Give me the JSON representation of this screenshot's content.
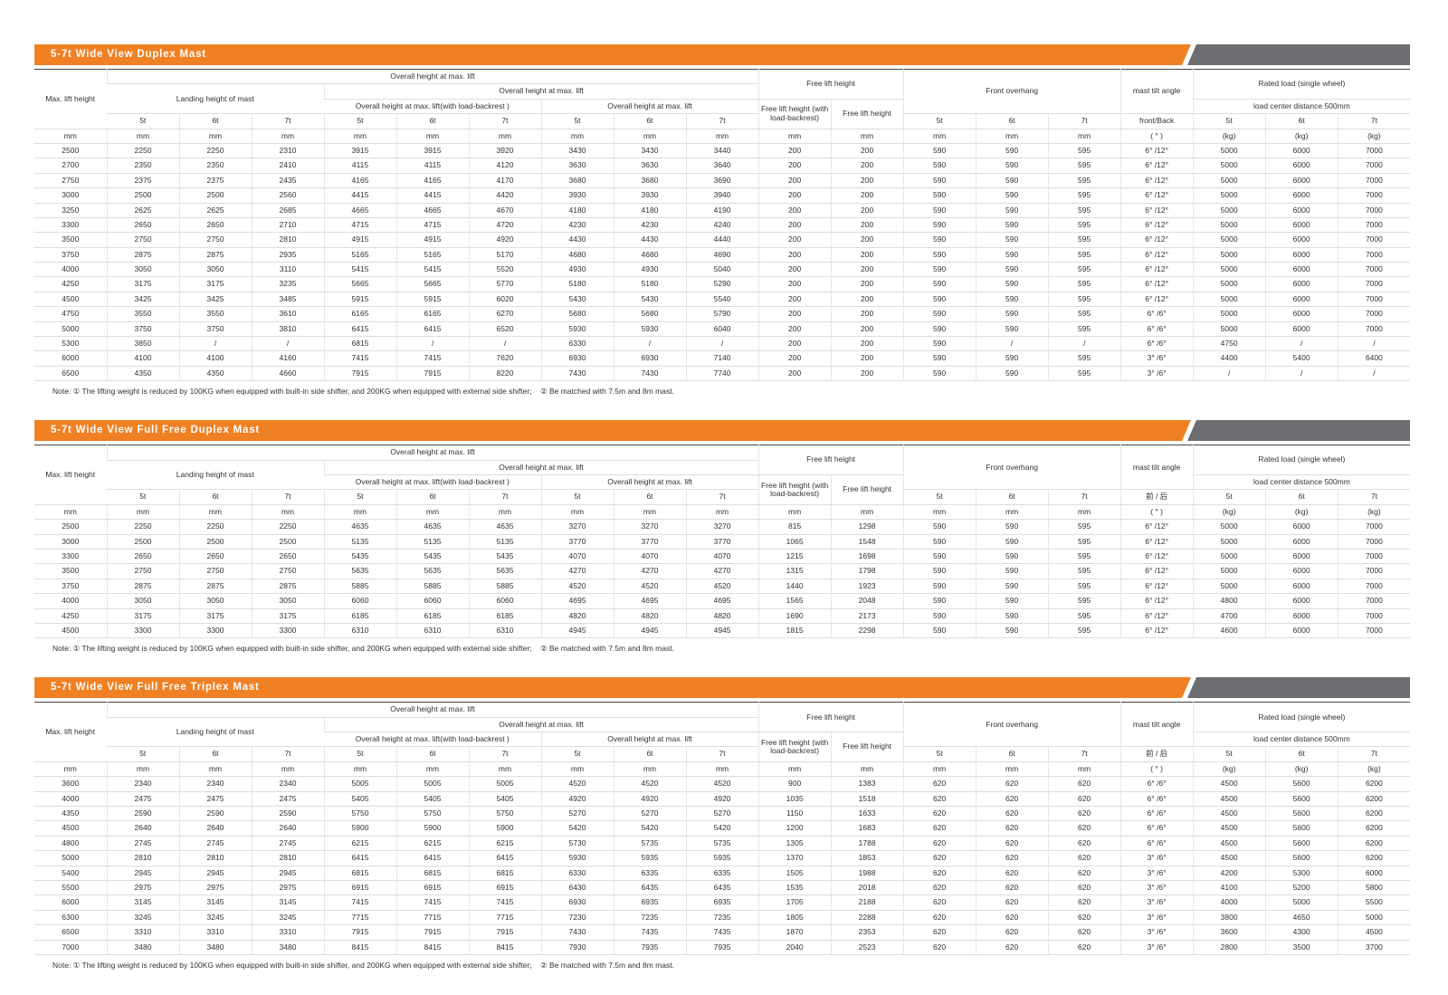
{
  "sections": [
    {
      "title": "5-7t Wide View Duplex Mast",
      "header": [
        [
          "Max. lift height",
          "Overall height at max. lift",
          "Free lift height",
          "Front overhang",
          "mast tilt angle",
          "Rated load (single wheel)"
        ],
        [
          "Landing height of mast",
          "Overall height at max. lift"
        ],
        [
          "Overall height at max. lift(with load-backrest )",
          "Overall height at max. lift",
          "Free lift height (with load-backrest)",
          "Free lift height",
          "load center distance 500mm"
        ],
        [
          "5t",
          "6t",
          "7t",
          "5t",
          "6t",
          "7t",
          "5t",
          "6t",
          "7t",
          "5t",
          "6t",
          "7t",
          "front/Back",
          "5t",
          "6t",
          "7t"
        ]
      ],
      "units": [
        "mm",
        "mm",
        "mm",
        "mm",
        "mm",
        "mm",
        "mm",
        "mm",
        "mm",
        "mm",
        "mm",
        "mm",
        "mm",
        "mm",
        "mm",
        "( ° )",
        "(kg)",
        "(kg)",
        "(kg)"
      ],
      "rows": [
        [
          2500,
          2250,
          2250,
          2310,
          3915,
          3915,
          3920,
          3430,
          3430,
          3440,
          200,
          200,
          590,
          590,
          595,
          "6° /12°",
          5000,
          6000,
          7000
        ],
        [
          2700,
          2350,
          2350,
          2410,
          4115,
          4115,
          4120,
          3630,
          3630,
          3640,
          200,
          200,
          590,
          590,
          595,
          "6° /12°",
          5000,
          6000,
          7000
        ],
        [
          2750,
          2375,
          2375,
          2435,
          4165,
          4165,
          4170,
          3680,
          3680,
          3690,
          200,
          200,
          590,
          590,
          595,
          "6° /12°",
          5000,
          6000,
          7000
        ],
        [
          3000,
          2500,
          2500,
          2560,
          4415,
          4415,
          4420,
          3930,
          3930,
          3940,
          200,
          200,
          590,
          590,
          595,
          "6° /12°",
          5000,
          6000,
          7000
        ],
        [
          3250,
          2625,
          2625,
          2685,
          4665,
          4665,
          4670,
          4180,
          4180,
          4190,
          200,
          200,
          590,
          590,
          595,
          "6° /12°",
          5000,
          6000,
          7000
        ],
        [
          3300,
          2650,
          2650,
          2710,
          4715,
          4715,
          4720,
          4230,
          4230,
          4240,
          200,
          200,
          590,
          590,
          595,
          "6° /12°",
          5000,
          6000,
          7000
        ],
        [
          3500,
          2750,
          2750,
          2810,
          4915,
          4915,
          4920,
          4430,
          4430,
          4440,
          200,
          200,
          590,
          590,
          595,
          "6° /12°",
          5000,
          6000,
          7000
        ],
        [
          3750,
          2875,
          2875,
          2935,
          5165,
          5165,
          5170,
          4680,
          4680,
          4690,
          200,
          200,
          590,
          590,
          595,
          "6° /12°",
          5000,
          6000,
          7000
        ],
        [
          4000,
          3050,
          3050,
          3110,
          5415,
          5415,
          5520,
          4930,
          4930,
          5040,
          200,
          200,
          590,
          590,
          595,
          "6° /12°",
          5000,
          6000,
          7000
        ],
        [
          4250,
          3175,
          3175,
          3235,
          5665,
          5665,
          5770,
          5180,
          5180,
          5290,
          200,
          200,
          590,
          590,
          595,
          "6° /12°",
          5000,
          6000,
          7000
        ],
        [
          4500,
          3425,
          3425,
          3485,
          5915,
          5915,
          6020,
          5430,
          5430,
          5540,
          200,
          200,
          590,
          590,
          595,
          "6° /12°",
          5000,
          6000,
          7000
        ],
        [
          4750,
          3550,
          3550,
          3610,
          6165,
          6165,
          6270,
          5680,
          5680,
          5790,
          200,
          200,
          590,
          590,
          595,
          "6° /6°",
          5000,
          6000,
          7000
        ],
        [
          5000,
          3750,
          3750,
          3810,
          6415,
          6415,
          6520,
          5930,
          5930,
          6040,
          200,
          200,
          590,
          590,
          595,
          "6° /6°",
          5000,
          6000,
          7000
        ],
        [
          5300,
          3850,
          "/",
          "/",
          6815,
          "/",
          "/",
          6330,
          "/",
          "/",
          200,
          200,
          590,
          "/",
          "/",
          "6° /6°",
          4750,
          "/",
          "/"
        ],
        [
          6000,
          4100,
          4100,
          4160,
          7415,
          7415,
          7620,
          6930,
          6930,
          7140,
          200,
          200,
          590,
          590,
          595,
          "3° /6°",
          4400,
          5400,
          6400
        ],
        [
          6500,
          4350,
          4350,
          4660,
          7915,
          7915,
          8220,
          7430,
          7430,
          7740,
          200,
          200,
          590,
          590,
          595,
          "3° /6°",
          "/",
          "/",
          "/"
        ]
      ],
      "note": "Note: ① The lifting weight is reduced by 100KG when equipped with built-in side shifter, and 200KG when equipped with external side shifter;    ② Be matched with 7.5m and 8m mast."
    },
    {
      "title": "5-7t Wide View Full Free Duplex Mast",
      "header": [
        [
          "Max. lift height",
          "Overall height at max. lift",
          "Free lift height",
          "Front overhang",
          "mast tilt angle",
          "Rated load (single wheel)"
        ],
        [
          "Landing height of mast",
          "Overall height at max. lift"
        ],
        [
          "Overall height at max. lift(with load-backrest )",
          "Overall height at max. lift",
          "Free lift height (with load-backrest)",
          "Free lift height",
          "load center distance 500mm"
        ],
        [
          "5t",
          "6t",
          "7t",
          "5t",
          "6t",
          "7t",
          "5t",
          "6t",
          "7t",
          "5t",
          "6t",
          "7t",
          "前 / 后",
          "5t",
          "6t",
          "7t"
        ]
      ],
      "units": [
        "mm",
        "mm",
        "mm",
        "mm",
        "mm",
        "mm",
        "mm",
        "mm",
        "mm",
        "mm",
        "mm",
        "mm",
        "mm",
        "mm",
        "mm",
        "( ° )",
        "(kg)",
        "(kg)",
        "(kg)"
      ],
      "rows": [
        [
          2500,
          2250,
          2250,
          2250,
          4635,
          4635,
          4635,
          3270,
          3270,
          3270,
          815,
          1298,
          590,
          590,
          595,
          "6° /12°",
          5000,
          6000,
          7000
        ],
        [
          3000,
          2500,
          2500,
          2500,
          5135,
          5135,
          5135,
          3770,
          3770,
          3770,
          1065,
          1548,
          590,
          590,
          595,
          "6° /12°",
          5000,
          6000,
          7000
        ],
        [
          3300,
          2650,
          2650,
          2650,
          5435,
          5435,
          5435,
          4070,
          4070,
          4070,
          1215,
          1698,
          590,
          590,
          595,
          "6° /12°",
          5000,
          6000,
          7000
        ],
        [
          3500,
          2750,
          2750,
          2750,
          5635,
          5635,
          5635,
          4270,
          4270,
          4270,
          1315,
          1798,
          590,
          590,
          595,
          "6° /12°",
          5000,
          6000,
          7000
        ],
        [
          3750,
          2875,
          2875,
          2875,
          5885,
          5885,
          5885,
          4520,
          4520,
          4520,
          1440,
          1923,
          590,
          590,
          595,
          "6° /12°",
          5000,
          6000,
          7000
        ],
        [
          4000,
          3050,
          3050,
          3050,
          6060,
          6060,
          6060,
          4695,
          4695,
          4695,
          1565,
          2048,
          590,
          590,
          595,
          "6° /12°",
          4800,
          6000,
          7000
        ],
        [
          4250,
          3175,
          3175,
          3175,
          6185,
          6185,
          6185,
          4820,
          4820,
          4820,
          1690,
          2173,
          590,
          590,
          595,
          "6° /12°",
          4700,
          6000,
          7000
        ],
        [
          4500,
          3300,
          3300,
          3300,
          6310,
          6310,
          6310,
          4945,
          4945,
          4945,
          1815,
          2298,
          590,
          590,
          595,
          "6° /12°",
          4600,
          6000,
          7000
        ]
      ],
      "note": "Note: ① The lifting weight is reduced by 100KG when equipped with built-in side shifter, and 200KG when equipped with external side shifter;    ② Be matched with 7.5m and 8m mast."
    },
    {
      "title": "5-7t Wide View Full Free Triplex Mast",
      "header": [
        [
          "Max. lift height",
          "Overall height at max. lift",
          "Free lift height",
          "Front overhang",
          "mast tilt angle",
          "Rated load (single wheel)"
        ],
        [
          "Landing height of mast",
          "Overall height at max. lift"
        ],
        [
          "Overall height at max. lift(with load-backrest )",
          "Overall height at max. lift",
          "Free lift height (with load-backrest)",
          "Free lift height",
          "load center distance 500mm"
        ],
        [
          "5t",
          "6t",
          "7t",
          "5t",
          "6t",
          "7t",
          "5t",
          "6t",
          "7t",
          "5t",
          "6t",
          "7t",
          "前 / 后",
          "5t",
          "6t",
          "7t"
        ]
      ],
      "units": [
        "mm",
        "mm",
        "mm",
        "mm",
        "mm",
        "mm",
        "mm",
        "mm",
        "mm",
        "mm",
        "mm",
        "mm",
        "mm",
        "mm",
        "mm",
        "( ° )",
        "(kg)",
        "(kg)",
        "(kg)"
      ],
      "rows": [
        [
          3600,
          2340,
          2340,
          2340,
          5005,
          5005,
          5005,
          4520,
          4520,
          4520,
          900,
          1383,
          620,
          620,
          620,
          "6° /6°",
          4500,
          5600,
          6200
        ],
        [
          4000,
          2475,
          2475,
          2475,
          5405,
          5405,
          5405,
          4920,
          4920,
          4920,
          1035,
          1518,
          620,
          620,
          620,
          "6° /6°",
          4500,
          5600,
          6200
        ],
        [
          4350,
          2590,
          2590,
          2590,
          5750,
          5750,
          5750,
          5270,
          5270,
          5270,
          1150,
          1633,
          620,
          620,
          620,
          "6° /6°",
          4500,
          5600,
          6200
        ],
        [
          4500,
          2640,
          2640,
          2640,
          5900,
          5900,
          5900,
          5420,
          5420,
          5420,
          1200,
          1683,
          620,
          620,
          620,
          "6° /6°",
          4500,
          5600,
          6200
        ],
        [
          4800,
          2745,
          2745,
          2745,
          6215,
          6215,
          6215,
          5730,
          5735,
          5735,
          1305,
          1788,
          620,
          620,
          620,
          "6° /6°",
          4500,
          5600,
          6200
        ],
        [
          5000,
          2810,
          2810,
          2810,
          6415,
          6415,
          6415,
          5930,
          5935,
          5935,
          1370,
          1853,
          620,
          620,
          620,
          "3° /6°",
          4500,
          5600,
          6200
        ],
        [
          5400,
          2945,
          2945,
          2945,
          6815,
          6815,
          6815,
          6330,
          6335,
          6335,
          1505,
          1988,
          620,
          620,
          620,
          "3° /6°",
          4200,
          5300,
          6000
        ],
        [
          5500,
          2975,
          2975,
          2975,
          6915,
          6915,
          6915,
          6430,
          6435,
          6435,
          1535,
          2018,
          620,
          620,
          620,
          "3° /6°",
          4100,
          5200,
          5800
        ],
        [
          6000,
          3145,
          3145,
          3145,
          7415,
          7415,
          7415,
          6930,
          6935,
          6935,
          1705,
          2188,
          620,
          620,
          620,
          "3° /6°",
          4000,
          5000,
          5500
        ],
        [
          6300,
          3245,
          3245,
          3245,
          7715,
          7715,
          7715,
          7230,
          7235,
          7235,
          1805,
          2288,
          620,
          620,
          620,
          "3° /6°",
          3800,
          4650,
          5000
        ],
        [
          6500,
          3310,
          3310,
          3310,
          7915,
          7915,
          7915,
          7430,
          7435,
          7435,
          1870,
          2353,
          620,
          620,
          620,
          "3° /6°",
          3600,
          4300,
          4500
        ],
        [
          7000,
          3480,
          3480,
          3480,
          8415,
          8415,
          8415,
          7930,
          7935,
          7935,
          2040,
          2523,
          620,
          620,
          620,
          "3° /6°",
          2800,
          3500,
          3700
        ]
      ],
      "note": "Note: ① The lifting weight is reduced by 100KG when equipped with built-in side shifter, and 200KG when equipped with external side shifter;    ② Be matched with 7.5m and 8m mast."
    }
  ]
}
